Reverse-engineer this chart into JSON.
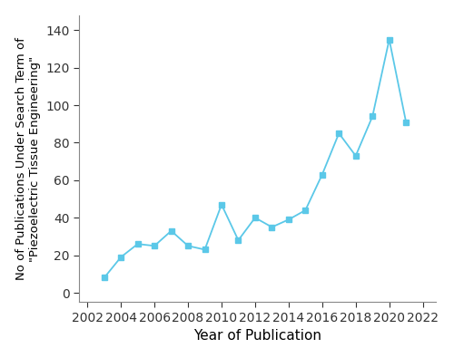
{
  "years": [
    2003,
    2004,
    2005,
    2006,
    2007,
    2008,
    2009,
    2010,
    2011,
    2012,
    2013,
    2014,
    2015,
    2016,
    2017,
    2018,
    2019,
    2020,
    2021
  ],
  "values": [
    8,
    19,
    26,
    25,
    33,
    25,
    23,
    47,
    28,
    40,
    35,
    39,
    44,
    63,
    85,
    73,
    94,
    135,
    91
  ],
  "line_color": "#5BC8E8",
  "marker_style": "s",
  "marker_size": 4.5,
  "line_width": 1.3,
  "linestyle": "-",
  "xlabel": "Year of Publication",
  "ylabel": "No of Publications Under Search Term of\n\"Piezoelectric Tissue Engineering\"",
  "xlim": [
    2001.5,
    2022.8
  ],
  "ylim": [
    -5,
    148
  ],
  "xticks": [
    2002,
    2004,
    2006,
    2008,
    2010,
    2012,
    2014,
    2016,
    2018,
    2020,
    2022
  ],
  "yticks": [
    0,
    20,
    40,
    60,
    80,
    100,
    120,
    140
  ],
  "xlabel_fontsize": 11,
  "ylabel_fontsize": 9.5,
  "tick_fontsize": 10,
  "background_color": "#ffffff"
}
